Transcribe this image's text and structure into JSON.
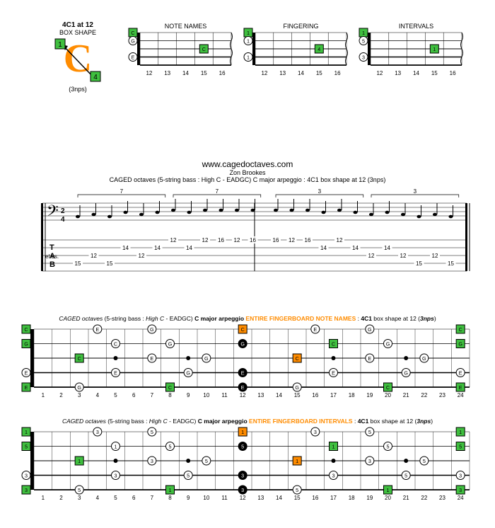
{
  "colors": {
    "green": "#3fbf3f",
    "orange": "#ff8c00",
    "black": "#000000",
    "white": "#ffffff",
    "grid": "#000000"
  },
  "boxShape": {
    "title1": "4C1 at 12",
    "title2": "BOX SHAPE",
    "letter": "C",
    "marker1": "1",
    "marker4": "4",
    "nps": "(3nps)"
  },
  "smallDiagrams": {
    "width": 155,
    "height": 80,
    "strings": 5,
    "frets": 5,
    "fretLabels": [
      "12",
      "13",
      "14",
      "15",
      "16"
    ],
    "fretLabelFontsize": 8,
    "noteFontsize": 8,
    "items": [
      {
        "title": "NOTE NAMES",
        "nut": [
          {
            "s": 0,
            "l": "C",
            "c": "green"
          },
          {
            "s": 1,
            "l": "G",
            "c": "white"
          },
          {
            "s": 3,
            "l": "E",
            "c": "white"
          }
        ],
        "dots": [
          {
            "f": 3,
            "s": 2,
            "l": "C",
            "c": "green"
          }
        ]
      },
      {
        "title": "FINGERING",
        "nut": [
          {
            "s": 0,
            "l": "1",
            "c": "green"
          },
          {
            "s": 1,
            "l": "1",
            "c": "white"
          },
          {
            "s": 3,
            "l": "1",
            "c": "white"
          }
        ],
        "dots": [
          {
            "f": 3,
            "s": 2,
            "l": "4",
            "c": "green"
          }
        ]
      },
      {
        "title": "INTERVALS",
        "nut": [
          {
            "s": 0,
            "l": "1",
            "c": "green"
          },
          {
            "s": 1,
            "l": "5",
            "c": "white"
          },
          {
            "s": 3,
            "l": "3",
            "c": "white"
          }
        ],
        "dots": [
          {
            "f": 3,
            "s": 2,
            "l": "1",
            "c": "green"
          }
        ]
      }
    ]
  },
  "stave": {
    "url": "www.cagedoctaves.com",
    "author": "Zon Brookes",
    "desc": "CAGED octaves (5-string bass : High C - EADGC) C major arpeggio : 4C1 box shape at 12 (3nps)",
    "timesig": "2/4",
    "triplets": [
      "7",
      "7",
      "3",
      "3"
    ],
    "tabLabels": [
      "T",
      "A",
      "B"
    ],
    "measures": [
      {
        "notes": [
          [
            4,
            "15"
          ],
          [
            3,
            "12"
          ],
          [
            4,
            "15"
          ],
          [
            2,
            "14"
          ],
          [
            3,
            "12"
          ],
          [
            2,
            "14"
          ],
          [
            1,
            "12"
          ],
          [
            2,
            "14"
          ],
          [
            1,
            "12"
          ],
          [
            1,
            "16"
          ],
          [
            1,
            "12"
          ],
          [
            1,
            "16"
          ]
        ]
      },
      {
        "notes": [
          [
            1,
            "16"
          ],
          [
            1,
            "12"
          ],
          [
            1,
            "16"
          ],
          [
            2,
            "14"
          ],
          [
            1,
            "12"
          ],
          [
            2,
            "14"
          ],
          [
            3,
            "12"
          ],
          [
            2,
            "14"
          ],
          [
            3,
            "12"
          ],
          [
            4,
            "15"
          ],
          [
            3,
            "12"
          ],
          [
            4,
            "15"
          ]
        ]
      }
    ]
  },
  "fullDiagrams": {
    "frets": 24,
    "strings": 5,
    "fretLabels": [
      "1",
      "2",
      "3",
      "4",
      "5",
      "6",
      "7",
      "8",
      "9",
      "10",
      "11",
      "12",
      "13",
      "14",
      "15",
      "16",
      "17",
      "18",
      "19",
      "20",
      "21",
      "22",
      "23",
      "24"
    ],
    "fretMarkers": [
      3,
      5,
      7,
      9,
      12,
      15,
      17,
      19,
      21,
      24
    ],
    "doubleMarkers": [
      12,
      24
    ],
    "items": [
      {
        "titleParts": [
          "|CAGED octaves|i",
          " (5-string bass : ",
          "|High C|i",
          " - EADGC) ",
          "|C major arpeggio|b",
          " ",
          "|ENTIRE FINGERBOARD NOTE NAMES|bo",
          " : ",
          "|4C1|b",
          " box shape at 12 (",
          "|3nps|bi",
          ")"
        ],
        "nut": [
          {
            "s": 0,
            "l": "C",
            "c": "green"
          },
          {
            "s": 1,
            "l": "G",
            "c": "green"
          },
          {
            "s": 3,
            "l": "E",
            "c": "white"
          },
          {
            "s": 4,
            "l": "E",
            "c": "green"
          }
        ],
        "notes": [
          {
            "f": 3,
            "s": 2,
            "l": "C",
            "c": "green"
          },
          {
            "f": 3,
            "s": 4,
            "l": "G",
            "c": "white"
          },
          {
            "f": 4,
            "s": 0,
            "l": "E",
            "c": "white"
          },
          {
            "f": 5,
            "s": 1,
            "l": "C",
            "c": "white"
          },
          {
            "f": 5,
            "s": 3,
            "l": "E",
            "c": "white"
          },
          {
            "f": 7,
            "s": 0,
            "l": "G",
            "c": "white"
          },
          {
            "f": 7,
            "s": 2,
            "l": "E",
            "c": "white"
          },
          {
            "f": 8,
            "s": 1,
            "l": "G",
            "c": "white"
          },
          {
            "f": 8,
            "s": 4,
            "l": "C",
            "c": "green"
          },
          {
            "f": 9,
            "s": 3,
            "l": "G",
            "c": "white"
          },
          {
            "f": 10,
            "s": 2,
            "l": "G",
            "c": "white"
          },
          {
            "f": 12,
            "s": 0,
            "l": "C",
            "c": "orange"
          },
          {
            "f": 12,
            "s": 1,
            "l": "G",
            "c": "black"
          },
          {
            "f": 12,
            "s": 3,
            "l": "E",
            "c": "black"
          },
          {
            "f": 12,
            "s": 4,
            "l": "E",
            "c": "black"
          },
          {
            "f": 15,
            "s": 2,
            "l": "C",
            "c": "orange"
          },
          {
            "f": 15,
            "s": 4,
            "l": "G",
            "c": "white"
          },
          {
            "f": 16,
            "s": 0,
            "l": "E",
            "c": "white"
          },
          {
            "f": 17,
            "s": 1,
            "l": "C",
            "c": "green"
          },
          {
            "f": 17,
            "s": 3,
            "l": "E",
            "c": "white"
          },
          {
            "f": 19,
            "s": 0,
            "l": "G",
            "c": "white"
          },
          {
            "f": 19,
            "s": 2,
            "l": "E",
            "c": "white"
          },
          {
            "f": 20,
            "s": 1,
            "l": "G",
            "c": "white"
          },
          {
            "f": 20,
            "s": 4,
            "l": "C",
            "c": "green"
          },
          {
            "f": 21,
            "s": 3,
            "l": "G",
            "c": "white"
          },
          {
            "f": 22,
            "s": 2,
            "l": "G",
            "c": "white"
          },
          {
            "f": 24,
            "s": 0,
            "l": "C",
            "c": "green"
          },
          {
            "f": 24,
            "s": 1,
            "l": "G",
            "c": "green"
          },
          {
            "f": 24,
            "s": 3,
            "l": "E",
            "c": "white"
          },
          {
            "f": 24,
            "s": 4,
            "l": "E",
            "c": "green"
          }
        ]
      },
      {
        "titleParts": [
          "|CAGED octaves|i",
          " (5-string bass : ",
          "|High C|i",
          " - EADGC) ",
          "|C major arpeggio|b",
          " ",
          "|ENTIRE FINGERBOARD INTERVALS|bo",
          " : ",
          "|4C1|b",
          " box shape at 12 (",
          "|3nps|bi",
          ")"
        ],
        "nut": [
          {
            "s": 0,
            "l": "1",
            "c": "green"
          },
          {
            "s": 1,
            "l": "5",
            "c": "green"
          },
          {
            "s": 3,
            "l": "3",
            "c": "white"
          },
          {
            "s": 4,
            "l": "3",
            "c": "green"
          }
        ],
        "notes": [
          {
            "f": 3,
            "s": 2,
            "l": "1",
            "c": "green"
          },
          {
            "f": 3,
            "s": 4,
            "l": "5",
            "c": "white"
          },
          {
            "f": 4,
            "s": 0,
            "l": "3",
            "c": "white"
          },
          {
            "f": 5,
            "s": 1,
            "l": "1",
            "c": "white"
          },
          {
            "f": 5,
            "s": 3,
            "l": "3",
            "c": "white"
          },
          {
            "f": 7,
            "s": 0,
            "l": "5",
            "c": "white"
          },
          {
            "f": 7,
            "s": 2,
            "l": "3",
            "c": "white"
          },
          {
            "f": 8,
            "s": 1,
            "l": "5",
            "c": "white"
          },
          {
            "f": 8,
            "s": 4,
            "l": "1",
            "c": "green"
          },
          {
            "f": 9,
            "s": 3,
            "l": "5",
            "c": "white"
          },
          {
            "f": 10,
            "s": 2,
            "l": "5",
            "c": "white"
          },
          {
            "f": 12,
            "s": 0,
            "l": "1",
            "c": "orange"
          },
          {
            "f": 12,
            "s": 1,
            "l": "5",
            "c": "black"
          },
          {
            "f": 12,
            "s": 3,
            "l": "3",
            "c": "black"
          },
          {
            "f": 12,
            "s": 4,
            "l": "3",
            "c": "black"
          },
          {
            "f": 15,
            "s": 2,
            "l": "1",
            "c": "orange"
          },
          {
            "f": 15,
            "s": 4,
            "l": "5",
            "c": "white"
          },
          {
            "f": 16,
            "s": 0,
            "l": "3",
            "c": "white"
          },
          {
            "f": 17,
            "s": 1,
            "l": "1",
            "c": "green"
          },
          {
            "f": 17,
            "s": 3,
            "l": "3",
            "c": "white"
          },
          {
            "f": 19,
            "s": 0,
            "l": "5",
            "c": "white"
          },
          {
            "f": 19,
            "s": 2,
            "l": "3",
            "c": "white"
          },
          {
            "f": 20,
            "s": 1,
            "l": "5",
            "c": "white"
          },
          {
            "f": 20,
            "s": 4,
            "l": "1",
            "c": "green"
          },
          {
            "f": 21,
            "s": 3,
            "l": "5",
            "c": "white"
          },
          {
            "f": 22,
            "s": 2,
            "l": "5",
            "c": "white"
          },
          {
            "f": 24,
            "s": 0,
            "l": "1",
            "c": "green"
          },
          {
            "f": 24,
            "s": 1,
            "l": "5",
            "c": "green"
          },
          {
            "f": 24,
            "s": 3,
            "l": "3",
            "c": "white"
          },
          {
            "f": 24,
            "s": 4,
            "l": "3",
            "c": "green"
          }
        ]
      }
    ]
  }
}
